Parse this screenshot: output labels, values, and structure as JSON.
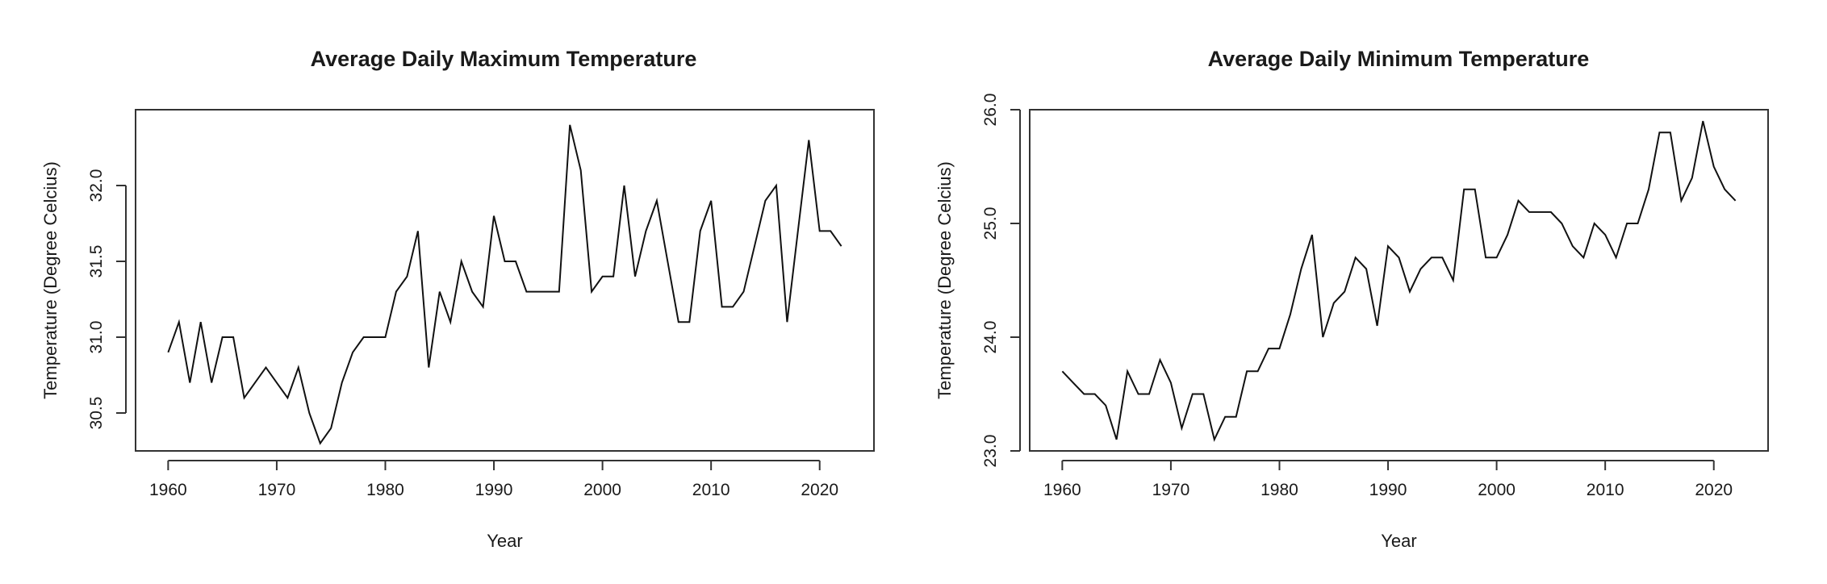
{
  "chart_data": [
    {
      "type": "line",
      "title": "Average Daily Maximum Temperature",
      "xlabel": "Year",
      "ylabel": "Temperature (Degree Celcius)",
      "xlim": [
        1957,
        2025
      ],
      "ylim": [
        30.25,
        32.5
      ],
      "xticks": [
        1960,
        1970,
        1980,
        1990,
        2000,
        2010,
        2020
      ],
      "yticks": [
        30.5,
        31.0,
        31.5,
        32.0
      ],
      "ytick_labels": [
        "30.5",
        "31.0",
        "31.5",
        "32.0"
      ],
      "grid": false,
      "series": [
        {
          "x": [
            1960,
            1961,
            1962,
            1963,
            1964,
            1965,
            1966,
            1967,
            1968,
            1969,
            1970,
            1971,
            1972,
            1973,
            1974,
            1975,
            1976,
            1977,
            1978,
            1979,
            1980,
            1981,
            1982,
            1983,
            1984,
            1985,
            1986,
            1987,
            1988,
            1989,
            1990,
            1991,
            1992,
            1993,
            1994,
            1995,
            1996,
            1997,
            1998,
            1999,
            2000,
            2001,
            2002,
            2003,
            2004,
            2005,
            2006,
            2007,
            2008,
            2009,
            2010,
            2011,
            2012,
            2013,
            2014,
            2015,
            2016,
            2017,
            2018,
            2019,
            2020,
            2021,
            2022
          ],
          "y": [
            30.9,
            31.1,
            30.7,
            31.1,
            30.7,
            31.0,
            31.0,
            30.6,
            30.7,
            30.8,
            30.7,
            30.6,
            30.8,
            30.5,
            30.3,
            30.4,
            30.7,
            30.9,
            31.0,
            31.0,
            31.0,
            31.3,
            31.4,
            31.7,
            30.8,
            31.3,
            31.1,
            31.5,
            31.3,
            31.2,
            31.8,
            31.5,
            31.5,
            31.3,
            31.3,
            31.3,
            31.3,
            32.4,
            32.1,
            31.3,
            31.4,
            31.4,
            32.0,
            31.4,
            31.7,
            31.9,
            31.5,
            31.1,
            31.1,
            31.7,
            31.9,
            31.2,
            31.2,
            31.3,
            31.6,
            31.9,
            32.0,
            31.1,
            31.7,
            32.3,
            31.7,
            31.7,
            31.6
          ]
        }
      ]
    },
    {
      "type": "line",
      "title": "Average Daily Minimum Temperature",
      "xlabel": "Year",
      "ylabel": "Temperature (Degree Celcius)",
      "xlim": [
        1957,
        2025
      ],
      "ylim": [
        23.0,
        26.0
      ],
      "xticks": [
        1960,
        1970,
        1980,
        1990,
        2000,
        2010,
        2020
      ],
      "yticks": [
        23.0,
        24.0,
        25.0,
        26.0
      ],
      "ytick_labels": [
        "23.0",
        "24.0",
        "25.0",
        "26.0"
      ],
      "grid": false,
      "series": [
        {
          "x": [
            1960,
            1961,
            1962,
            1963,
            1964,
            1965,
            1966,
            1967,
            1968,
            1969,
            1970,
            1971,
            1972,
            1973,
            1974,
            1975,
            1976,
            1977,
            1978,
            1979,
            1980,
            1981,
            1982,
            1983,
            1984,
            1985,
            1986,
            1987,
            1988,
            1989,
            1990,
            1991,
            1992,
            1993,
            1994,
            1995,
            1996,
            1997,
            1998,
            1999,
            2000,
            2001,
            2002,
            2003,
            2004,
            2005,
            2006,
            2007,
            2008,
            2009,
            2010,
            2011,
            2012,
            2013,
            2014,
            2015,
            2016,
            2017,
            2018,
            2019,
            2020,
            2021,
            2022
          ],
          "y": [
            23.7,
            23.6,
            23.5,
            23.5,
            23.4,
            23.1,
            23.7,
            23.5,
            23.5,
            23.8,
            23.6,
            23.2,
            23.5,
            23.5,
            23.1,
            23.3,
            23.3,
            23.7,
            23.7,
            23.9,
            23.9,
            24.2,
            24.6,
            24.9,
            24.0,
            24.3,
            24.4,
            24.7,
            24.6,
            24.1,
            24.8,
            24.7,
            24.4,
            24.6,
            24.7,
            24.7,
            24.5,
            25.3,
            25.3,
            24.7,
            24.7,
            24.9,
            25.2,
            25.1,
            25.1,
            25.1,
            25.0,
            24.8,
            24.7,
            25.0,
            24.9,
            24.7,
            25.0,
            25.0,
            25.3,
            25.8,
            25.8,
            25.2,
            25.4,
            25.9,
            25.5,
            25.3,
            25.2
          ]
        }
      ]
    }
  ]
}
